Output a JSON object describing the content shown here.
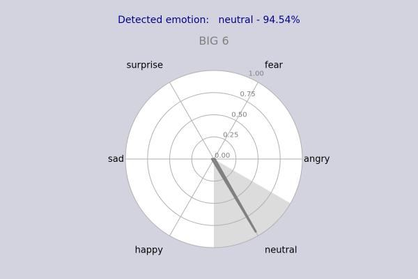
{
  "status": {
    "label": "Detected emotion:",
    "value": "neutral - 94.54%"
  },
  "chart_data": {
    "type": "radar",
    "title": "BIG 6",
    "categories": [
      "angry",
      "fear",
      "surprise",
      "sad",
      "happy",
      "neutral"
    ],
    "values": [
      0.01,
      0.0,
      0.0,
      0.02,
      0.02,
      0.9454
    ],
    "rlim": [
      0,
      1
    ],
    "rticks": [
      "0.00",
      "0.25",
      "0.50",
      "0.75",
      "1.00"
    ],
    "highlight_category": "neutral",
    "grid": true,
    "colors": {
      "background": "#d3d3e0",
      "plot_background": "#ffffff",
      "highlight_sector": "#dcdcdc",
      "data_line": "#808080",
      "grid": "#b0b0b0",
      "title": "#808080",
      "status_text": "#00008b"
    }
  }
}
